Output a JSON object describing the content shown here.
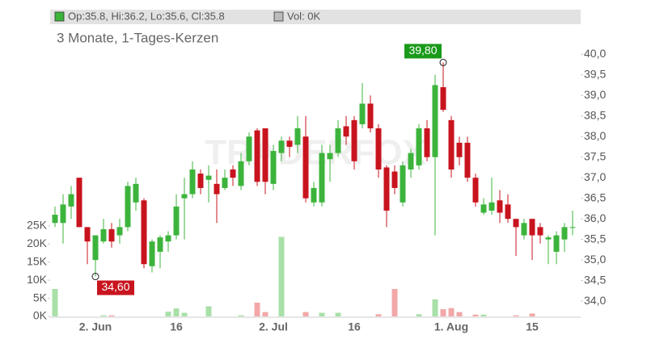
{
  "chart_data": {
    "type": "candlestick",
    "header": {
      "ohlc_text": "Op:35.8, Hi:36.2, Lo:35.6, Cl:35.8",
      "volume_text": "Vol: 0K"
    },
    "subtitle": "3 Monate, 1-Tages-Kerzen",
    "watermark": "TRADERFOX",
    "high_label": "39,80",
    "low_label": "34,60",
    "up_color": "#3cb43c",
    "down_color": "#c8141e",
    "categories": [
      null,
      null,
      null,
      null,
      null,
      "2. Jun",
      null,
      null,
      null,
      null,
      null,
      null,
      null,
      null,
      null,
      "16",
      null,
      null,
      null,
      null,
      null,
      null,
      null,
      null,
      null,
      null,
      null,
      "2. Jul",
      null,
      null,
      null,
      null,
      null,
      null,
      null,
      null,
      null,
      "16",
      null,
      null,
      null,
      null,
      null,
      null,
      null,
      null,
      null,
      null,
      null,
      "1. Aug",
      null,
      null,
      null,
      null,
      null,
      null,
      null,
      null,
      null,
      "15",
      null,
      null,
      null,
      null,
      null
    ],
    "series": [
      {
        "name": "Open",
        "values": [
          35.9,
          35.9,
          36.3,
          37.0,
          35.8,
          35.0,
          35.45,
          35.75,
          35.6,
          35.8,
          36.4,
          36.45,
          34.85,
          35.2,
          35.45,
          35.6,
          36.5,
          36.6,
          37.1,
          36.95,
          36.85,
          36.75,
          37.2,
          36.8,
          37.4,
          38.15,
          38.2,
          36.85,
          37.6,
          37.9,
          37.8,
          38.0,
          36.4,
          36.4,
          37.45,
          37.6,
          38.25,
          38.4,
          38.3,
          38.8,
          38.2,
          37.25,
          37.15,
          36.4,
          37.2,
          37.3,
          38.2,
          37.5,
          39.2,
          38.4,
          37.85,
          37.85,
          37.0,
          36.15,
          36.2,
          36.45,
          36.35,
          36.0,
          35.6,
          36.0,
          35.8,
          35.5,
          35.2,
          35.5,
          35.8
        ]
      },
      {
        "name": "High",
        "values": [
          36.3,
          36.6,
          36.8,
          37.0,
          35.8,
          35.6,
          36.0,
          35.9,
          36.0,
          36.9,
          37.0,
          36.5,
          35.5,
          35.6,
          35.7,
          36.6,
          37.0,
          37.4,
          37.2,
          37.3,
          37.2,
          37.2,
          37.3,
          37.6,
          38.1,
          38.2,
          38.2,
          37.8,
          38.0,
          38.0,
          38.5,
          38.5,
          36.9,
          37.8,
          37.8,
          38.4,
          38.5,
          38.5,
          39.3,
          39.0,
          38.3,
          37.3,
          37.3,
          37.4,
          37.7,
          38.3,
          38.4,
          39.5,
          39.8,
          38.5,
          38.0,
          38.0,
          37.1,
          36.5,
          37.0,
          36.7,
          36.6,
          36.0,
          36.0,
          36.0,
          35.9,
          35.6,
          35.7,
          35.9,
          36.2
        ]
      },
      {
        "name": "Low",
        "values": [
          35.8,
          35.4,
          36.0,
          35.8,
          34.9,
          34.6,
          35.4,
          35.3,
          35.4,
          35.7,
          36.2,
          34.8,
          34.7,
          34.8,
          35.2,
          35.5,
          35.5,
          36.5,
          36.6,
          36.4,
          35.9,
          36.7,
          36.8,
          36.7,
          37.3,
          36.8,
          36.6,
          36.7,
          37.4,
          37.5,
          37.6,
          36.4,
          36.3,
          36.3,
          36.9,
          37.5,
          37.8,
          37.2,
          38.2,
          38.1,
          37.0,
          35.8,
          36.6,
          36.3,
          37.0,
          37.2,
          37.4,
          35.6,
          38.6,
          37.0,
          37.3,
          36.9,
          36.3,
          36.1,
          36.1,
          35.9,
          35.9,
          35.1,
          35.5,
          35.0,
          35.4,
          34.9,
          34.9,
          35.2,
          35.6
        ]
      },
      {
        "name": "Close",
        "values": [
          36.1,
          36.35,
          36.6,
          35.8,
          35.45,
          35.6,
          35.75,
          35.45,
          35.8,
          36.8,
          36.85,
          34.9,
          35.45,
          35.55,
          35.6,
          36.3,
          36.6,
          37.2,
          36.75,
          37.05,
          36.6,
          37.0,
          37.0,
          37.4,
          38.0,
          36.9,
          36.9,
          37.65,
          37.9,
          37.75,
          38.2,
          36.5,
          36.75,
          37.6,
          37.6,
          38.2,
          38.0,
          37.4,
          38.8,
          38.2,
          37.2,
          36.2,
          36.75,
          37.3,
          37.6,
          38.2,
          37.5,
          39.25,
          38.65,
          37.2,
          37.5,
          37.0,
          36.4,
          36.35,
          36.4,
          36.15,
          36.0,
          35.8,
          35.9,
          35.6,
          35.6,
          35.55,
          35.6,
          35.8,
          35.8
        ]
      },
      {
        "name": "Volume",
        "axis": "y2",
        "values": [
          7600,
          0,
          0,
          0,
          0,
          0,
          300,
          300,
          0,
          0,
          0,
          0,
          0,
          0,
          1300,
          2200,
          1000,
          0,
          0,
          2800,
          0,
          0,
          0,
          300,
          0,
          3800,
          1200,
          0,
          22000,
          0,
          0,
          1200,
          0,
          1000,
          0,
          1000,
          0,
          0,
          0,
          0,
          600,
          0,
          7600,
          0,
          0,
          600,
          0,
          4700,
          2000,
          2300,
          1200,
          0,
          500,
          500,
          0,
          0,
          0,
          300,
          0,
          800,
          0,
          0,
          0,
          0,
          0
        ]
      }
    ],
    "ylim": [
      33.63,
      40.73
    ],
    "yticks": [
      {
        "value": 34.0,
        "label": "34,0"
      },
      {
        "value": 34.5,
        "label": "34,5"
      },
      {
        "value": 35.0,
        "label": "35,0"
      },
      {
        "value": 35.5,
        "label": "35,5"
      },
      {
        "value": 36.0,
        "label": "36,0"
      },
      {
        "value": 36.5,
        "label": "36,5"
      },
      {
        "value": 37.0,
        "label": "37,0"
      },
      {
        "value": 37.5,
        "label": "37,5"
      },
      {
        "value": 38.0,
        "label": "38,0"
      },
      {
        "value": 38.5,
        "label": "38,5"
      },
      {
        "value": 39.0,
        "label": "39,0"
      },
      {
        "value": 39.5,
        "label": "39,5"
      },
      {
        "value": 40.0,
        "label": "40,0"
      }
    ],
    "y2lim": [
      0,
      80800
    ],
    "y2ticks": [
      {
        "value": 0,
        "label": "0K"
      },
      {
        "value": 5000,
        "label": "5K"
      },
      {
        "value": 10000,
        "label": "10K"
      },
      {
        "value": 15000,
        "label": "15K"
      },
      {
        "value": 20000,
        "label": "20K"
      },
      {
        "value": 25000,
        "label": "25K"
      }
    ]
  }
}
